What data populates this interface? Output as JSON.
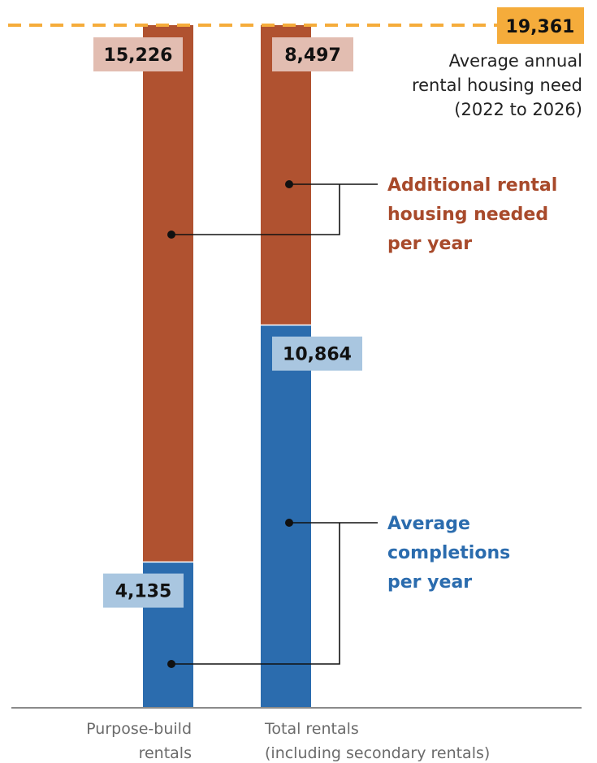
{
  "chart_data": {
    "type": "bar",
    "stacked": true,
    "categories": [
      "Purpose-build\nrentals",
      "Total rentals\n(including secondary rentals)"
    ],
    "series": [
      {
        "name": "Average completions per year",
        "values": [
          4135,
          10864
        ],
        "color": "#2b6cae",
        "label_bg": "#a9c6e0"
      },
      {
        "name": "Additional rental housing needed per year",
        "values": [
          15226,
          8497
        ],
        "color": "#b05230",
        "label_bg": "#e2bdb1"
      }
    ],
    "target": {
      "value": 19361,
      "value_text": "19,361",
      "label_lines": [
        "Average annual",
        "rental housing need",
        "(2022 to 2026)"
      ],
      "color": "#f5ac3b"
    },
    "value_labels": [
      [
        "4,135",
        "10,864"
      ],
      [
        "15,226",
        "8,497"
      ]
    ],
    "legend_lines": [
      [
        "Additional rental",
        "housing needed",
        "per year"
      ],
      [
        "Average",
        "completions",
        "per year"
      ]
    ],
    "ylim": [
      0,
      19361
    ],
    "grid": false
  }
}
